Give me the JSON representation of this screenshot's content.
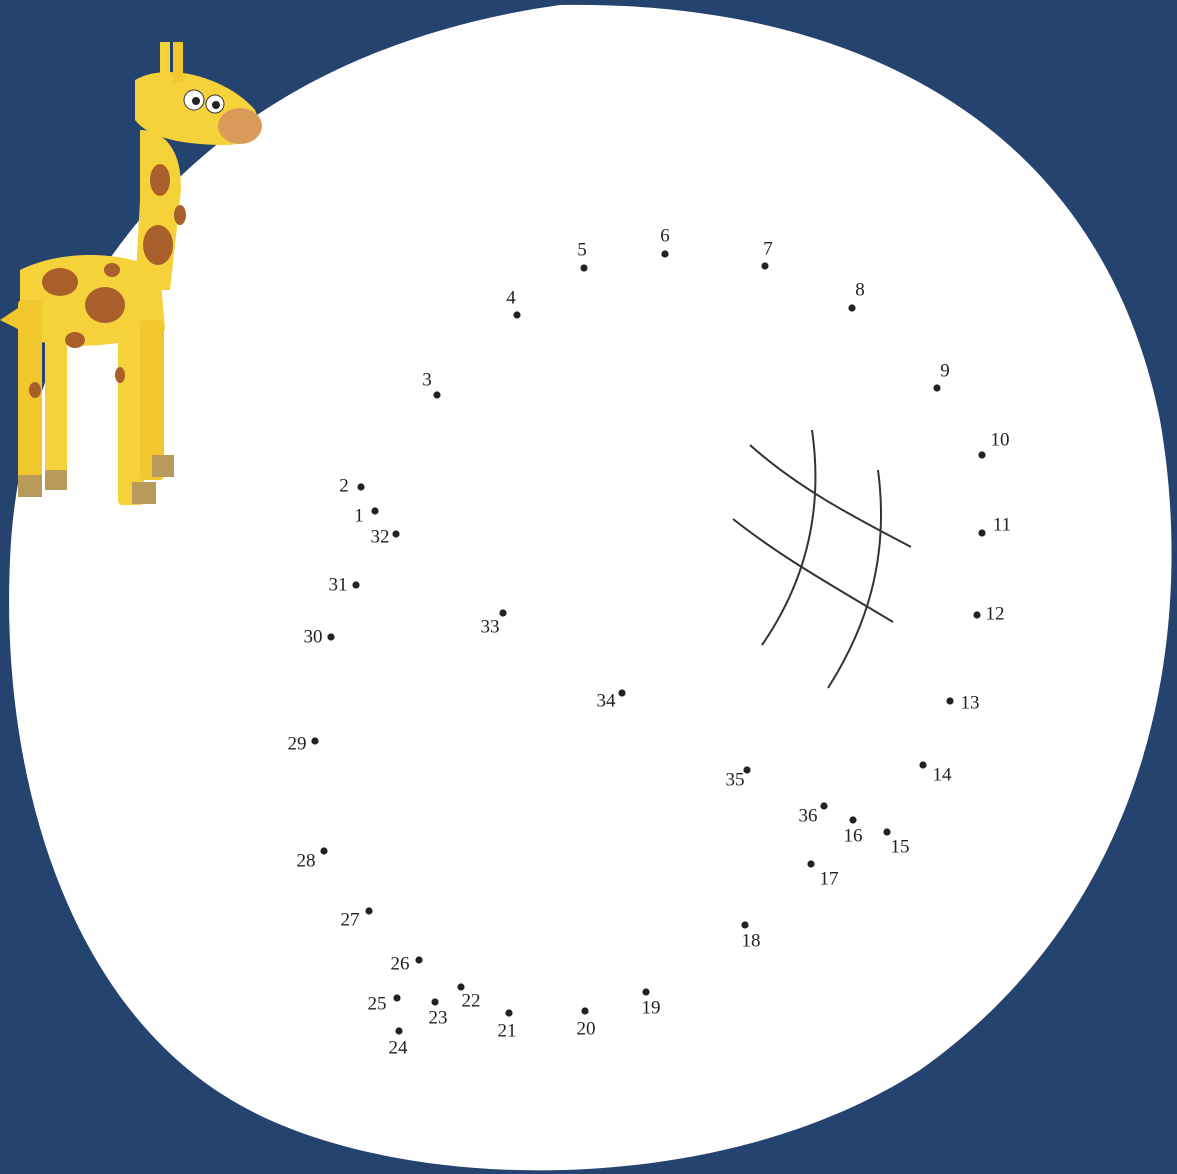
{
  "dots": [
    "1",
    "2",
    "3",
    "4",
    "5",
    "6",
    "7",
    "8",
    "9",
    "10",
    "11",
    "12",
    "13",
    "14",
    "15",
    "16",
    "17",
    "18",
    "19",
    "20",
    "21",
    "22",
    "23",
    "24",
    "25",
    "26",
    "27",
    "28",
    "29",
    "30",
    "31",
    "32",
    "33",
    "34",
    "35",
    "36"
  ]
}
